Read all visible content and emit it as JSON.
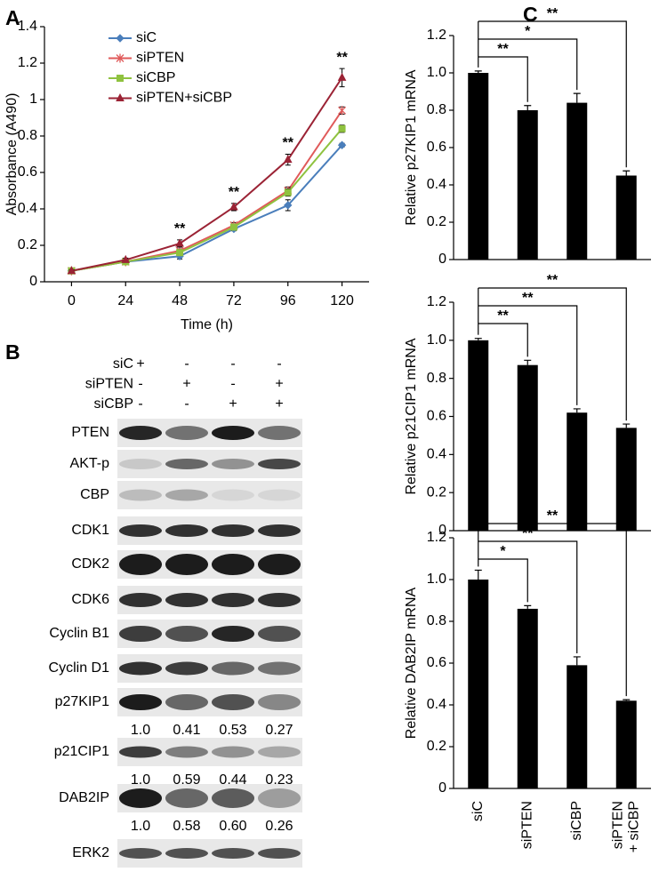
{
  "panel_labels": [
    "A",
    "B",
    "C"
  ],
  "chart_data": [
    {
      "type": "line",
      "xlabel": "Time (h)",
      "ylabel": "Absorbance (A490)",
      "x": [
        0,
        24,
        48,
        72,
        96,
        120
      ],
      "xlim": [
        -12,
        132
      ],
      "xticks": [
        0,
        24,
        48,
        72,
        96,
        120
      ],
      "ylim": [
        0,
        1.4
      ],
      "yticks": [
        0,
        0.2,
        0.4,
        0.6,
        0.8,
        1,
        {
          "value": 1.2,
          "label": "1.2"
        },
        1.4
      ],
      "legend": "upper left",
      "series": [
        {
          "name": "siC",
          "color": "#4a7ebb",
          "marker": "diamond",
          "values": [
            0.06,
            0.11,
            0.14,
            0.29,
            0.42,
            0.75
          ],
          "errors": [
            0.005,
            0.01,
            0.015,
            0.01,
            0.03,
            0.01
          ]
        },
        {
          "name": "siPTEN",
          "color": "#e05a5a",
          "marker": "cross",
          "values": [
            0.06,
            0.11,
            0.17,
            0.31,
            0.5,
            0.94
          ],
          "errors": [
            0.005,
            0.01,
            0.01,
            0.015,
            0.02,
            0.02
          ]
        },
        {
          "name": "siCBP",
          "color": "#8fc23f",
          "marker": "square",
          "values": [
            0.06,
            0.11,
            0.16,
            0.3,
            0.49,
            0.84
          ],
          "errors": [
            0.005,
            0.01,
            0.01,
            0.01,
            0.02,
            0.02
          ]
        },
        {
          "name": "siPTEN+siCBP",
          "color": "#9b2335",
          "marker": "triangle",
          "values": [
            0.06,
            0.12,
            0.21,
            0.41,
            0.67,
            1.12
          ],
          "errors": [
            0.005,
            0.01,
            0.02,
            0.02,
            0.03,
            0.05
          ]
        }
      ],
      "annotations": [
        {
          "x": 48,
          "text": "**"
        },
        {
          "x": 72,
          "text": "**"
        },
        {
          "x": 96,
          "text": "**"
        },
        {
          "x": 120,
          "text": "**"
        }
      ]
    },
    {
      "type": "bar",
      "ylabel": "Relative p27KIP1 mRNA",
      "categories": [
        null,
        null,
        null,
        null
      ],
      "values": [
        1.0,
        0.8,
        0.84,
        0.45
      ],
      "errors": [
        0.01,
        0.025,
        0.05,
        0.025
      ],
      "color": "#000000",
      "ylim": [
        0,
        1.2
      ],
      "yticks": [
        0,
        0.2,
        0.4,
        0.6,
        0.8,
        {
          "value": 1,
          "label": "1.0"
        },
        1.2
      ],
      "comparisons": [
        {
          "from": 0,
          "to": 1,
          "text": "**"
        },
        {
          "from": 0,
          "to": 2,
          "text": "*"
        },
        {
          "from": 0,
          "to": 3,
          "text": "**"
        }
      ]
    },
    {
      "type": "bar",
      "ylabel": "Relative p21CIP1 mRNA",
      "categories": [
        null,
        null,
        null,
        null
      ],
      "values": [
        1.0,
        0.87,
        0.62,
        0.54
      ],
      "errors": [
        0.01,
        0.025,
        0.02,
        0.02
      ],
      "color": "#000000",
      "ylim": [
        0,
        1.2
      ],
      "yticks": [
        0,
        0.2,
        0.4,
        0.6,
        0.8,
        {
          "value": 1,
          "label": "1.0"
        },
        1.2
      ],
      "comparisons": [
        {
          "from": 0,
          "to": 1,
          "text": "**"
        },
        {
          "from": 0,
          "to": 2,
          "text": "**"
        },
        {
          "from": 0,
          "to": 3,
          "text": "**"
        }
      ]
    },
    {
      "type": "bar",
      "ylabel": "Relative DAB2IP mRNA",
      "categories": [
        "siC",
        "siPTEN",
        "siCBP",
        [
          "siPTEN",
          "+ siCBP"
        ]
      ],
      "values": [
        1.0,
        0.86,
        0.59,
        0.42
      ],
      "errors": [
        0.045,
        0.015,
        0.04,
        0.005
      ],
      "color": "#000000",
      "ylim": [
        0,
        1.2
      ],
      "yticks": [
        0,
        0.2,
        0.4,
        0.6,
        0.8,
        {
          "value": 1,
          "label": "1.0"
        },
        1.2
      ],
      "comparisons": [
        {
          "from": 0,
          "to": 1,
          "text": "*"
        },
        {
          "from": 0,
          "to": 2,
          "text": "**"
        },
        {
          "from": 0,
          "to": 3,
          "text": "**"
        }
      ]
    }
  ],
  "blot": {
    "conditions": [
      {
        "name": "siC",
        "signs": [
          "+",
          "-",
          "-",
          "-"
        ]
      },
      {
        "name": "siPTEN",
        "signs": [
          "-",
          "+",
          "-",
          "+"
        ]
      },
      {
        "name": "siCBP",
        "signs": [
          "-",
          "-",
          "+",
          "+"
        ]
      }
    ],
    "rows": [
      {
        "name": "PTEN"
      },
      {
        "name": "AKT-p"
      },
      {
        "name": "CBP"
      },
      {
        "name": "CDK1"
      },
      {
        "name": "CDK2"
      },
      {
        "name": "CDK6"
      },
      {
        "name": "Cyclin B1"
      },
      {
        "name": "Cyclin D1"
      },
      {
        "name": "p27KIP1",
        "quant": [
          "1.0",
          "0.41",
          "0.53",
          "0.27"
        ]
      },
      {
        "name": "p21CIP1",
        "quant": [
          "1.0",
          "0.59",
          "0.44",
          "0.23"
        ]
      },
      {
        "name": "DAB2IP",
        "quant": [
          "1.0",
          "0.58",
          "0.60",
          "0.26"
        ]
      },
      {
        "name": "ERK2"
      }
    ]
  }
}
